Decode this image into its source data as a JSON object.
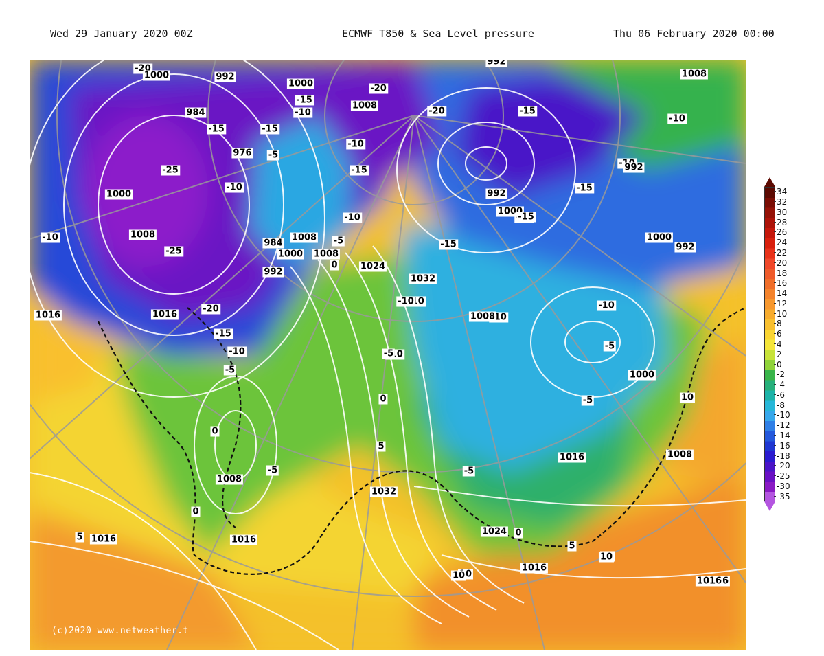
{
  "header": {
    "left": "Wed 29 January 2020 00Z",
    "center": "ECMWF T850 & Sea Level pressure",
    "right": "Thu 06 February 2020 00:00"
  },
  "map": {
    "copyright": "(c)2020 www.netweather.t",
    "labels": [
      "-20",
      "1000",
      "992",
      "1000",
      "-15",
      "-10",
      "1008",
      "-20",
      "-20",
      "992",
      "-15",
      "1008",
      "984",
      "-15",
      "-15",
      "-10",
      "-10",
      "976",
      "-5",
      "-15",
      "-10",
      "-25",
      "-10",
      "1000",
      "-15",
      "992",
      "992",
      "1000",
      "-15",
      "1000",
      "-15",
      "-10",
      "-10",
      "1008",
      "-25",
      "984",
      "1016",
      "1008",
      "-5",
      "-15",
      "1000",
      "0",
      "1024",
      "-10",
      "1008",
      "1000",
      "992",
      "1032",
      "992",
      "-10",
      "-5",
      "-10",
      "1016",
      "-20",
      "-15",
      "1016",
      "-10",
      "-10",
      "-5",
      "-5",
      "-10",
      "1008",
      "-5",
      "0",
      "1000",
      "10",
      "-5",
      "1016",
      "0",
      "1016",
      "1008",
      "-5",
      "5",
      "0",
      "1032",
      "1008",
      "1016",
      "1024",
      "0",
      "10",
      "5",
      "10",
      "1016",
      "1016",
      "1016",
      "5",
      "10",
      "10"
    ]
  },
  "scale": {
    "ticks": [
      "34",
      "32",
      "30",
      "28",
      "26",
      "24",
      "22",
      "20",
      "18",
      "16",
      "14",
      "12",
      "10",
      "8",
      "6",
      "4",
      "2",
      "0",
      "-2",
      "-4",
      "-6",
      "-8",
      "-10",
      "-12",
      "-14",
      "-16",
      "-18",
      "-20",
      "-25",
      "-30",
      "-35"
    ],
    "colors": [
      "#5c0a02",
      "#7a0d04",
      "#951207",
      "#ad1309",
      "#c5170b",
      "#d9200d",
      "#e8321a",
      "#f0482a",
      "#ef5b2b",
      "#f06e2a",
      "#f4832c",
      "#f7982e",
      "#f7ac2e",
      "#f9c02f",
      "#fad532",
      "#f5e63a",
      "#c8e33a",
      "#8fd33a",
      "#39b54a",
      "#26b07a",
      "#1cb3a8",
      "#27b7d8",
      "#36a8ec",
      "#2f7fe6",
      "#2458dc",
      "#1f37d2",
      "#2a1bd0",
      "#4a14c8",
      "#6a10c4",
      "#8a1ac4",
      "#b455e0"
    ]
  }
}
